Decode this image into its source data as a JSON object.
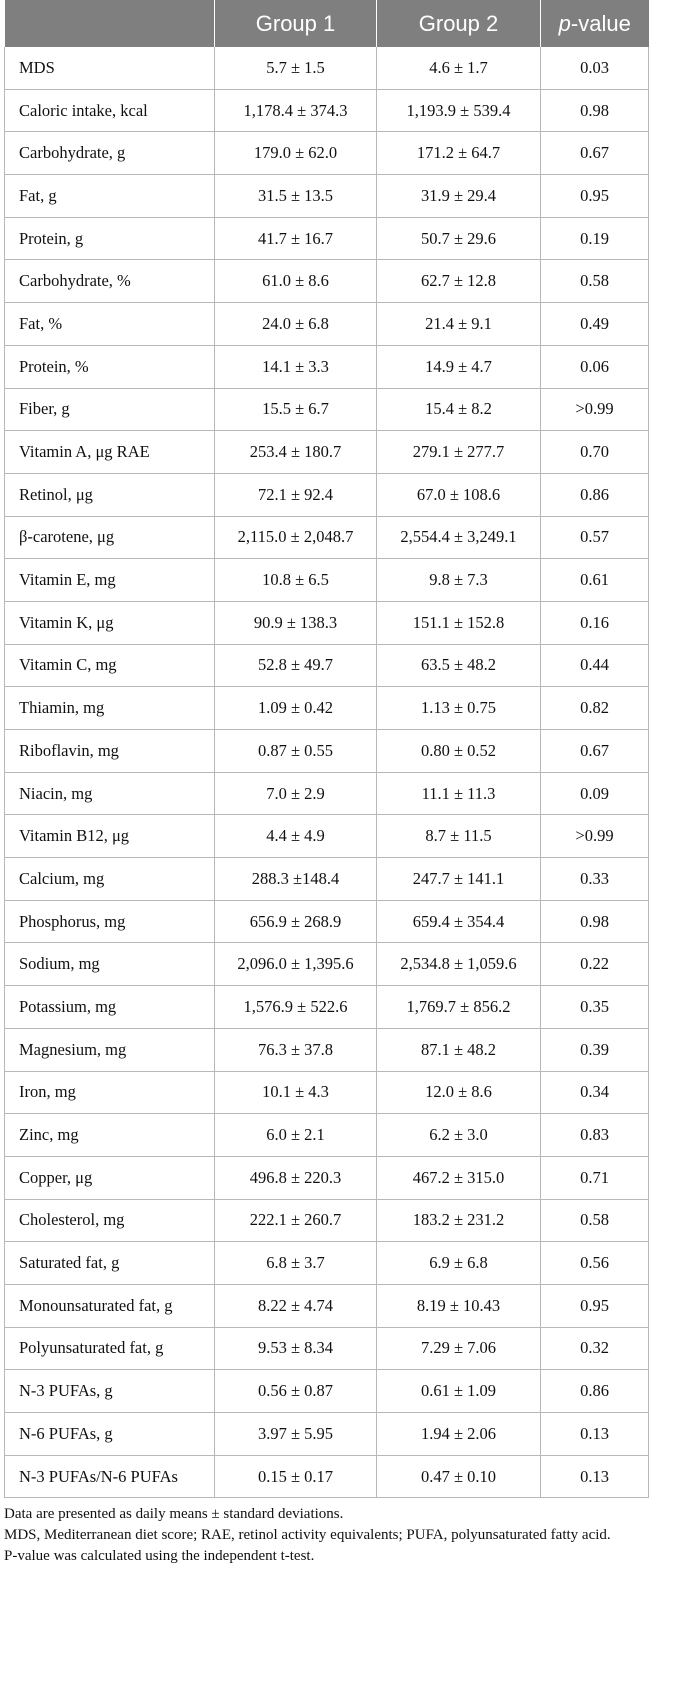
{
  "table": {
    "headers": [
      "",
      "Group 1",
      "Group 2",
      "-value"
    ],
    "header_p_prefix": "p",
    "rows": [
      [
        "MDS",
        "5.7 ± 1.5",
        "4.6 ± 1.7",
        "0.03"
      ],
      [
        "Caloric intake, kcal",
        "1,178.4 ± 374.3",
        "1,193.9 ± 539.4",
        "0.98"
      ],
      [
        "Carbohydrate, g",
        "179.0 ± 62.0",
        "171.2 ± 64.7",
        "0.67"
      ],
      [
        "Fat, g",
        "31.5 ± 13.5",
        "31.9 ± 29.4",
        "0.95"
      ],
      [
        "Protein, g",
        "41.7 ± 16.7",
        "50.7 ± 29.6",
        "0.19"
      ],
      [
        "Carbohydrate, %",
        "61.0 ± 8.6",
        "62.7 ± 12.8",
        "0.58"
      ],
      [
        "Fat, %",
        "24.0 ± 6.8",
        "21.4 ± 9.1",
        "0.49"
      ],
      [
        "Protein, %",
        "14.1 ± 3.3",
        "14.9 ± 4.7",
        "0.06"
      ],
      [
        "Fiber, g",
        "15.5 ± 6.7",
        "15.4 ± 8.2",
        ">0.99"
      ],
      [
        "Vitamin A, μg RAE",
        "253.4 ± 180.7",
        "279.1 ± 277.7",
        "0.70"
      ],
      [
        "Retinol, μg",
        "72.1 ± 92.4",
        "67.0 ± 108.6",
        "0.86"
      ],
      [
        "β-carotene, μg",
        "2,115.0 ± 2,048.7",
        "2,554.4 ± 3,249.1",
        "0.57"
      ],
      [
        "Vitamin E, mg",
        "10.8 ± 6.5",
        "9.8 ± 7.3",
        "0.61"
      ],
      [
        "Vitamin K, μg",
        "90.9 ± 138.3",
        "151.1 ± 152.8",
        "0.16"
      ],
      [
        "Vitamin C, mg",
        "52.8 ± 49.7",
        "63.5 ± 48.2",
        "0.44"
      ],
      [
        "Thiamin, mg",
        "1.09 ± 0.42",
        "1.13 ± 0.75",
        "0.82"
      ],
      [
        "Riboflavin, mg",
        "0.87 ± 0.55",
        "0.80 ± 0.52",
        "0.67"
      ],
      [
        "Niacin, mg",
        "7.0 ± 2.9",
        "11.1 ± 11.3",
        "0.09"
      ],
      [
        "Vitamin B12, μg",
        "4.4 ± 4.9",
        "8.7 ± 11.5",
        ">0.99"
      ],
      [
        "Calcium, mg",
        "288.3 ±148.4",
        "247.7 ± 141.1",
        "0.33"
      ],
      [
        "Phosphorus, mg",
        "656.9 ± 268.9",
        "659.4 ± 354.4",
        "0.98"
      ],
      [
        "Sodium, mg",
        "2,096.0 ± 1,395.6",
        "2,534.8 ± 1,059.6",
        "0.22"
      ],
      [
        "Potassium, mg",
        "1,576.9 ± 522.6",
        "1,769.7 ± 856.2",
        "0.35"
      ],
      [
        "Magnesium, mg",
        "76.3 ± 37.8",
        "87.1 ± 48.2",
        "0.39"
      ],
      [
        "Iron, mg",
        "10.1 ± 4.3",
        "12.0 ± 8.6",
        "0.34"
      ],
      [
        "Zinc, mg",
        "6.0 ± 2.1",
        "6.2 ± 3.0",
        "0.83"
      ],
      [
        "Copper, μg",
        "496.8 ± 220.3",
        "467.2 ± 315.0",
        "0.71"
      ],
      [
        "Cholesterol, mg",
        "222.1 ± 260.7",
        "183.2 ± 231.2",
        "0.58"
      ],
      [
        "Saturated fat, g",
        "6.8 ± 3.7",
        "6.9 ± 6.8",
        "0.56"
      ],
      [
        "Monounsaturated fat, g",
        "8.22 ± 4.74",
        "8.19 ± 10.43",
        "0.95"
      ],
      [
        "Polyunsaturated fat, g",
        "9.53 ± 8.34",
        "7.29 ± 7.06",
        "0.32"
      ],
      [
        "N-3 PUFAs, g",
        "0.56 ± 0.87",
        "0.61 ± 1.09",
        "0.86"
      ],
      [
        "N-6 PUFAs, g",
        "3.97 ± 5.95",
        "1.94 ± 2.06",
        "0.13"
      ],
      [
        "N-3 PUFAs/N-6 PUFAs",
        "0.15 ± 0.17",
        "0.47 ± 0.10",
        "0.13"
      ]
    ]
  },
  "footnotes": [
    "Data are presented as daily means ± standard deviations.",
    "MDS, Mediterranean diet score; RAE, retinol activity equivalents; PUFA, polyunsaturated fatty acid.",
    "P-value was calculated using the independent t-test."
  ]
}
